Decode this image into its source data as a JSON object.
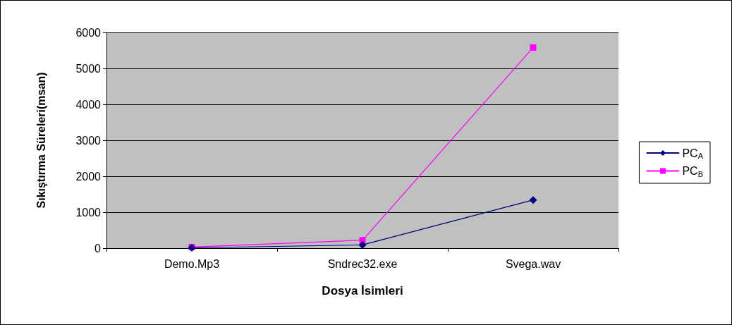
{
  "chart_data": {
    "type": "line",
    "xlabel": "Dosya İsimleri",
    "ylabel": "Sıkıştırma Süreleri(msan)",
    "categories": [
      "Demo.Mp3",
      "Sndrec32.exe",
      "Svega.wav"
    ],
    "series": [
      {
        "name": "PC$_{A}$",
        "color": "#000080",
        "marker": "diamond",
        "values": [
          10,
          90,
          1340
        ]
      },
      {
        "name": "PC$_{B}$",
        "color": "#ff00ff",
        "marker": "square",
        "values": [
          30,
          220,
          5580
        ]
      }
    ],
    "ylim": [
      0,
      6000
    ],
    "yticks": [
      0,
      1000,
      2000,
      3000,
      4000,
      5000,
      6000
    ],
    "grid": "y",
    "legend": "right",
    "line_style": "solid"
  }
}
